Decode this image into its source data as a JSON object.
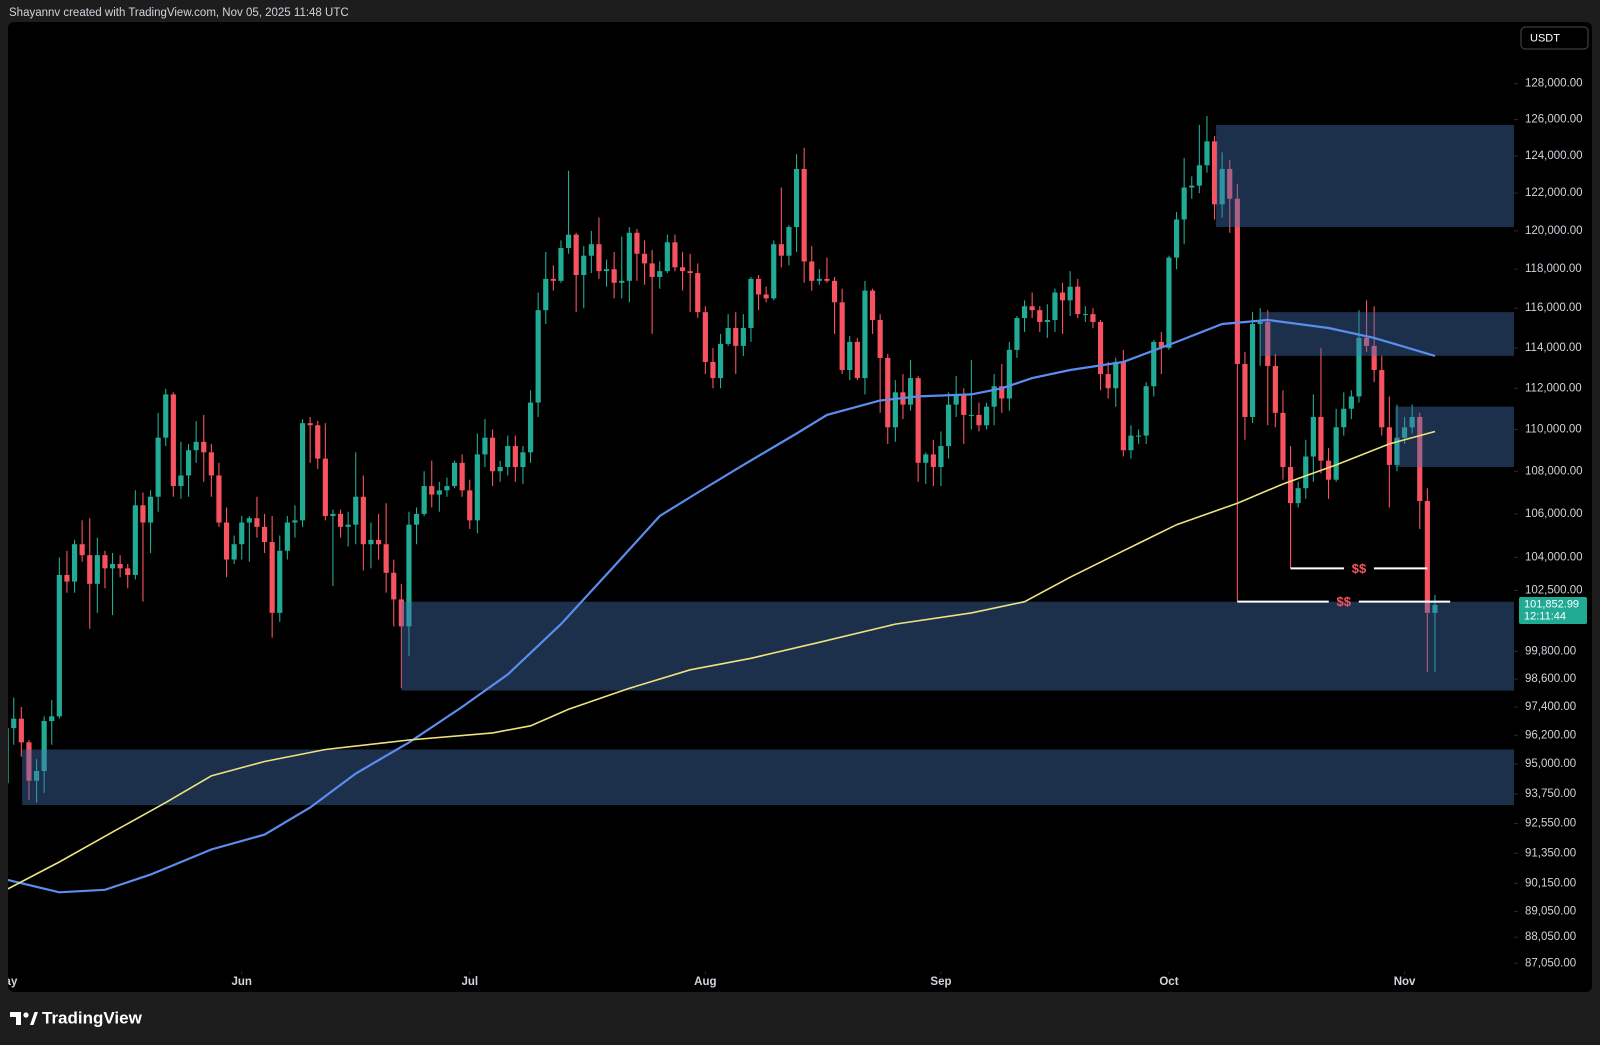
{
  "chart_data": {
    "type": "candlestick",
    "title": "Shayannv created with TradingView.com, Nov 05, 2025 11:48 UTC",
    "currency": "USDT",
    "brand": "TradingView",
    "up_color": "#22ab94",
    "down_color": "#f7525f",
    "log_scale": true,
    "xlim": [
      0.27,
      198.4
    ],
    "xticks": [
      {
        "value": 0,
        "label": "May"
      },
      {
        "value": 31,
        "label": "Jun"
      },
      {
        "value": 61,
        "label": "Jul"
      },
      {
        "value": 92,
        "label": "Aug"
      },
      {
        "value": 123,
        "label": "Sep"
      },
      {
        "value": 153,
        "label": "Oct"
      },
      {
        "value": 184,
        "label": "Nov"
      }
    ],
    "ylim": [
      86740,
      131480
    ],
    "yticks": [
      {
        "value": 128000,
        "label": "128,000.00"
      },
      {
        "value": 126000,
        "label": "126,000.00"
      },
      {
        "value": 124000,
        "label": "124,000.00"
      },
      {
        "value": 122000,
        "label": "122,000.00"
      },
      {
        "value": 120000,
        "label": "120,000.00"
      },
      {
        "value": 118000,
        "label": "118,000.00"
      },
      {
        "value": 116000,
        "label": "116,000.00"
      },
      {
        "value": 114000,
        "label": "114,000.00"
      },
      {
        "value": 112000,
        "label": "112,000.00"
      },
      {
        "value": 110000,
        "label": "110,000.00"
      },
      {
        "value": 108000,
        "label": "108,000.00"
      },
      {
        "value": 106000,
        "label": "106,000.00"
      },
      {
        "value": 104000,
        "label": "104,000.00"
      },
      {
        "value": 102500,
        "label": "102,500.00"
      },
      {
        "value": 99800,
        "label": "99,800.00"
      },
      {
        "value": 98600,
        "label": "98,600.00"
      },
      {
        "value": 97400,
        "label": "97,400.00"
      },
      {
        "value": 96200,
        "label": "96,200.00"
      },
      {
        "value": 95000,
        "label": "95,000.00"
      },
      {
        "value": 93750,
        "label": "93,750.00"
      },
      {
        "value": 92550,
        "label": "92,550.00"
      },
      {
        "value": 91350,
        "label": "91,350.00"
      },
      {
        "value": 90150,
        "label": "90,150.00"
      },
      {
        "value": 89050,
        "label": "89,050.00"
      },
      {
        "value": 88050,
        "label": "88,050.00"
      },
      {
        "value": 87050,
        "label": "87,050.00"
      }
    ],
    "open": [
      94200,
      96500,
      96900,
      95900,
      94300,
      94700,
      96800,
      97000,
      103200,
      102900,
      104600,
      104100,
      102800,
      104100,
      103500,
      103700,
      103500,
      103200,
      106400,
      105600,
      106800,
      109600,
      111700,
      107300,
      107800,
      109000,
      109400,
      108900,
      107800,
      105600,
      103900,
      104600,
      105600,
      105800,
      105400,
      104700,
      101500,
      104300,
      105600,
      105700,
      110300,
      110200,
      108600,
      105900,
      106000,
      105400,
      105500,
      106800,
      104600,
      104800,
      104600,
      103300,
      102100,
      100900,
      105500,
      106000,
      107300,
      106900,
      107100,
      107300,
      108400,
      107100,
      105700,
      108800,
      109600,
      108000,
      108200,
      109200,
      108200,
      108900,
      111300,
      115900,
      117500,
      117400,
      119100,
      119800,
      117700,
      118700,
      119300,
      117900,
      118000,
      117300,
      117400,
      119900,
      118800,
      118300,
      117600,
      117900,
      119400,
      118100,
      117900,
      117800,
      115800,
      113300,
      112500,
      114200,
      115000,
      114100,
      115000,
      117500,
      116700,
      116500,
      119300,
      118700,
      120200,
      123300,
      118400,
      117400,
      117500,
      117400,
      116300,
      112900,
      114300,
      112500,
      116900,
      115400,
      113500,
      110100,
      111800,
      111200,
      112500,
      108400,
      108800,
      108200,
      109200,
      111200,
      111700,
      110700,
      110700,
      110200,
      111100,
      112100,
      111500,
      113900,
      115500,
      116100,
      115900,
      115300,
      115400,
      116800,
      116400,
      117100,
      115700,
      115700,
      115300,
      112700,
      112000,
      113300,
      109000,
      109700,
      109700,
      112100,
      114300,
      114000,
      118600,
      120600,
      122300,
      122400,
      123500,
      124800,
      121400,
      123300,
      121700,
      113200,
      110600,
      115200,
      115300,
      113100,
      110800,
      108200,
      106500,
      107200,
      108700,
      110600,
      108500,
      107600,
      110100,
      111000,
      111600,
      114500,
      114100,
      112900,
      110100,
      108300,
      109600,
      110100,
      110600,
      106600,
      101500
    ],
    "high": [
      97400,
      97800,
      97400,
      96000,
      95200,
      97000,
      97700,
      104000,
      104300,
      104800,
      105700,
      105800,
      104900,
      104300,
      104200,
      104100,
      103700,
      107100,
      107000,
      107100,
      110800,
      111980,
      111800,
      109400,
      109300,
      110400,
      110700,
      109300,
      108400,
      106300,
      105000,
      105900,
      105900,
      106800,
      106000,
      105900,
      105000,
      105900,
      106400,
      110500,
      110600,
      110400,
      110300,
      106200,
      106200,
      106100,
      108900,
      107800,
      105600,
      106000,
      106500,
      103900,
      102800,
      106100,
      106300,
      108000,
      108500,
      107500,
      107700,
      108500,
      108800,
      107600,
      109800,
      110500,
      110000,
      108500,
      109700,
      109700,
      109200,
      111900,
      116800,
      118900,
      118200,
      119500,
      123200,
      119900,
      119200,
      120000,
      120700,
      118500,
      118900,
      119700,
      120200,
      120100,
      119500,
      119000,
      118400,
      119800,
      119800,
      118900,
      118800,
      118300,
      116100,
      114000,
      114700,
      115700,
      115800,
      115700,
      117600,
      117700,
      117100,
      119500,
      122300,
      120300,
      124100,
      124450,
      119200,
      118000,
      118600,
      117600,
      117000,
      114600,
      114500,
      117400,
      117000,
      115700,
      113700,
      112400,
      112700,
      113400,
      112600,
      108900,
      109500,
      109900,
      111800,
      112600,
      112000,
      113400,
      111300,
      111300,
      112700,
      113200,
      114300,
      115600,
      116400,
      116800,
      116100,
      116200,
      117000,
      117300,
      117900,
      117500,
      116100,
      116000,
      115400,
      113300,
      113500,
      113900,
      110200,
      110000,
      112300,
      114400,
      114800,
      118700,
      121000,
      123900,
      122900,
      125700,
      126200,
      125100,
      124200,
      123800,
      122500,
      113800,
      115800,
      116000,
      115900,
      113700,
      111900,
      109200,
      107500,
      109500,
      111700,
      114000,
      109100,
      111000,
      111800,
      111900,
      115900,
      116400,
      116100,
      113600,
      111600,
      111200,
      110600,
      111200,
      110800,
      107200,
      102300
    ],
    "low": [
      93800,
      95800,
      95300,
      93500,
      93400,
      93800,
      95800,
      96900,
      102400,
      102400,
      103800,
      100800,
      101500,
      102600,
      101400,
      103100,
      102600,
      103000,
      102000,
      104200,
      106100,
      109200,
      106800,
      106700,
      106800,
      108400,
      107500,
      106800,
      105400,
      103100,
      103700,
      103900,
      103800,
      104900,
      104200,
      100400,
      101100,
      103900,
      104900,
      105400,
      108400,
      108100,
      105700,
      102700,
      104900,
      104500,
      104600,
      103400,
      103500,
      103900,
      102400,
      100900,
      98200,
      99600,
      104600,
      105900,
      106300,
      106100,
      106800,
      107200,
      106800,
      105300,
      105100,
      108200,
      107300,
      107500,
      107800,
      107500,
      107400,
      108400,
      110600,
      115200,
      116900,
      117300,
      118800,
      115800,
      116000,
      117800,
      117500,
      117100,
      116500,
      116500,
      116300,
      117400,
      117200,
      114700,
      117000,
      117800,
      117900,
      116900,
      115800,
      115500,
      112700,
      112000,
      112000,
      114100,
      112700,
      113600,
      114300,
      115900,
      116300,
      116400,
      118100,
      118200,
      118900,
      117300,
      116900,
      117200,
      117300,
      114700,
      112700,
      112400,
      112400,
      111700,
      114700,
      110800,
      109300,
      109400,
      110500,
      110900,
      107500,
      107400,
      107300,
      107300,
      108600,
      110600,
      109300,
      110000,
      109900,
      110000,
      110200,
      110800,
      110900,
      113500,
      114800,
      115500,
      114800,
      114500,
      114800,
      114700,
      115600,
      115500,
      115300,
      115000,
      111900,
      111500,
      111100,
      108700,
      108600,
      109300,
      109300,
      111600,
      112700,
      113900,
      118000,
      119300,
      121700,
      122000,
      123100,
      120600,
      120700,
      119900,
      102000,
      109500,
      110300,
      113100,
      110200,
      110100,
      107600,
      103500,
      106300,
      106700,
      107500,
      107900,
      106700,
      107500,
      109700,
      110500,
      111300,
      113800,
      112300,
      109700,
      106300,
      108000,
      109300,
      109800,
      105300,
      98900,
      98900
    ],
    "close": [
      96500,
      96900,
      95900,
      94300,
      94700,
      96800,
      97000,
      103200,
      102900,
      104600,
      104100,
      102800,
      104100,
      103500,
      103700,
      103500,
      103200,
      106400,
      105600,
      106800,
      109600,
      111700,
      107300,
      107800,
      109000,
      109400,
      108900,
      107800,
      105600,
      103900,
      104600,
      105600,
      105800,
      105400,
      104700,
      101500,
      104300,
      105600,
      105700,
      110300,
      110200,
      108600,
      105900,
      106000,
      105400,
      105500,
      106800,
      104600,
      104800,
      104600,
      103300,
      102100,
      100900,
      105500,
      106000,
      107300,
      106900,
      107100,
      107300,
      108400,
      107100,
      105700,
      108800,
      109600,
      108000,
      108200,
      109200,
      108200,
      108900,
      111300,
      115900,
      117500,
      117400,
      119100,
      119800,
      117700,
      118700,
      119300,
      117900,
      118000,
      117300,
      117400,
      119900,
      118800,
      118300,
      117600,
      117900,
      119400,
      118100,
      117900,
      117800,
      115800,
      113300,
      112500,
      114200,
      115000,
      114100,
      115000,
      117500,
      116700,
      116500,
      119300,
      118700,
      120200,
      123300,
      118400,
      117400,
      117500,
      117400,
      116300,
      112900,
      114300,
      112500,
      116900,
      115400,
      113500,
      110100,
      111800,
      111200,
      112500,
      108400,
      108800,
      108200,
      109200,
      111200,
      111700,
      110700,
      110700,
      110200,
      111100,
      112100,
      111500,
      113900,
      115500,
      116100,
      115900,
      115300,
      115400,
      116800,
      116400,
      117100,
      115700,
      115700,
      115300,
      112700,
      112000,
      113300,
      109000,
      109700,
      109700,
      112100,
      114300,
      114000,
      118600,
      120600,
      122300,
      122400,
      123500,
      124800,
      121400,
      123300,
      121700,
      113200,
      110600,
      115200,
      115300,
      113100,
      110800,
      108200,
      106500,
      107200,
      108700,
      110600,
      108500,
      107600,
      110100,
      111000,
      111600,
      114500,
      114100,
      112900,
      110100,
      108300,
      109600,
      110100,
      110600,
      106600,
      101500,
      101852.99
    ],
    "lines": [
      {
        "color": "#5b8def",
        "x": [
          0,
          7,
          13,
          19,
          27,
          34,
          40,
          46,
          53,
          60,
          66,
          73,
          80,
          86,
          91,
          97,
          104,
          108,
          115,
          120,
          127,
          131,
          135,
          140,
          147,
          154,
          160,
          166,
          174,
          180,
          188
        ],
        "values": [
          90300,
          89800,
          89900,
          90500,
          91500,
          92100,
          93200,
          94600,
          95900,
          97400,
          98800,
          101000,
          103600,
          105900,
          107000,
          108300,
          109800,
          110700,
          111400,
          111600,
          111700,
          112000,
          112500,
          112900,
          113300,
          114300,
          115200,
          115400,
          115000,
          114500,
          113600
        ]
      },
      {
        "color": "#ece37e",
        "x": [
          0,
          7,
          14,
          21,
          27,
          34,
          42,
          53,
          64,
          69,
          74,
          82,
          90,
          98,
          107,
          117,
          127,
          134,
          140,
          147,
          154,
          162,
          168,
          175,
          182,
          188
        ],
        "values": [
          89900,
          91000,
          92200,
          93400,
          94500,
          95100,
          95600,
          96000,
          96300,
          96600,
          97300,
          98200,
          99000,
          99500,
          100200,
          101000,
          101500,
          102000,
          103100,
          104300,
          105500,
          106500,
          107400,
          108300,
          109300,
          109900
        ]
      }
    ],
    "zone_color": "rgba(66,115,180,0.42)",
    "zones": [
      {
        "x0": 159.2,
        "low": 120200,
        "high": 125700
      },
      {
        "x0": 165,
        "low": 113600,
        "high": 115800
      },
      {
        "x0": 182.8,
        "low": 108200,
        "high": 111100
      },
      {
        "x0": 52,
        "low": 98100,
        "high": 102000
      },
      {
        "x0": 2.1,
        "low": 93300,
        "high": 95600
      }
    ],
    "level_color": "#ffffff",
    "level_label_color": "#f7525f",
    "levels": [
      {
        "x0": 169,
        "x1": 187,
        "value": 103500,
        "label": "$$"
      },
      {
        "x0": 162,
        "x1": 190,
        "value": 102000,
        "label": "$$"
      }
    ],
    "last_price": {
      "value": 101852.99,
      "label": "101,852.99",
      "countdown": "12:11:44",
      "color": "#22ab94"
    }
  }
}
